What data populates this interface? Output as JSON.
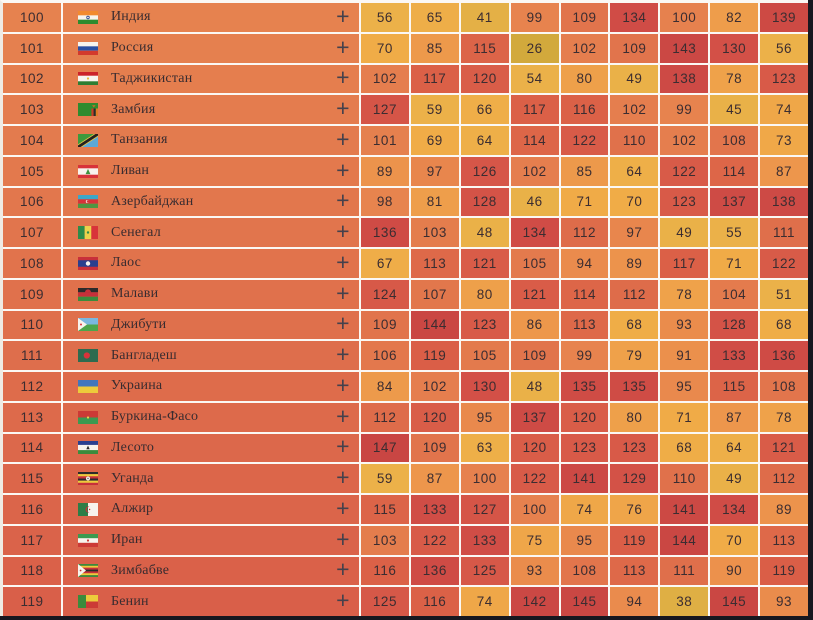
{
  "page": {
    "background": "#17171F",
    "grid_line": "#FBF8F4",
    "left_edge": "#EFEBE4"
  },
  "colors": {
    "number_text": "#3B2D31",
    "country_text": "#392C30",
    "plus_icon": "#45414C",
    "row_bg_top": "#E6824F",
    "row_bg_bottom": "#D95F49"
  },
  "heatmap_stops": [
    [
      26,
      "#D2A93C"
    ],
    [
      36,
      "#DCAE42"
    ],
    [
      44,
      "#E9B148"
    ],
    [
      58,
      "#ECB149"
    ],
    [
      70,
      "#F0AC47"
    ],
    [
      82,
      "#EE9D4B"
    ],
    [
      92,
      "#EB8E4C"
    ],
    [
      100,
      "#E6814E"
    ],
    [
      109,
      "#E1744C"
    ],
    [
      116,
      "#DB6147"
    ],
    [
      124,
      "#D75948"
    ],
    [
      132,
      "#D14D46"
    ],
    [
      140,
      "#CC4944"
    ],
    [
      147,
      "#C94643"
    ]
  ],
  "table": {
    "expand_symbol": "+",
    "rows": [
      {
        "rank": "100",
        "country": "Индия",
        "flag": "india",
        "values": [
          56,
          65,
          41,
          99,
          109,
          134,
          100,
          82,
          139
        ]
      },
      {
        "rank": "101",
        "country": "Россия",
        "flag": "russia",
        "values": [
          70,
          85,
          115,
          26,
          102,
          109,
          143,
          130,
          56
        ]
      },
      {
        "rank": "102",
        "country": "Таджикистан",
        "flag": "tajikistan",
        "values": [
          102,
          117,
          120,
          54,
          80,
          49,
          138,
          78,
          123
        ]
      },
      {
        "rank": "103",
        "country": "Замбия",
        "flag": "zambia",
        "values": [
          127,
          59,
          66,
          117,
          116,
          102,
          99,
          45,
          74
        ]
      },
      {
        "rank": "104",
        "country": "Танзания",
        "flag": "tanzania",
        "values": [
          101,
          69,
          64,
          114,
          122,
          110,
          102,
          108,
          73
        ]
      },
      {
        "rank": "105",
        "country": "Ливан",
        "flag": "lebanon",
        "values": [
          89,
          97,
          126,
          102,
          85,
          64,
          122,
          114,
          87
        ]
      },
      {
        "rank": "106",
        "country": "Азербайджан",
        "flag": "azerbaijan",
        "values": [
          98,
          81,
          128,
          46,
          71,
          70,
          123,
          137,
          138
        ]
      },
      {
        "rank": "107",
        "country": "Сенегал",
        "flag": "senegal",
        "values": [
          136,
          103,
          48,
          134,
          112,
          97,
          49,
          55,
          111
        ]
      },
      {
        "rank": "108",
        "country": "Лаос",
        "flag": "laos",
        "values": [
          67,
          113,
          121,
          105,
          94,
          89,
          117,
          71,
          122
        ]
      },
      {
        "rank": "109",
        "country": "Малави",
        "flag": "malawi",
        "values": [
          124,
          107,
          80,
          121,
          114,
          112,
          78,
          104,
          51
        ]
      },
      {
        "rank": "110",
        "country": "Джибути",
        "flag": "djibouti",
        "values": [
          109,
          144,
          123,
          86,
          113,
          68,
          93,
          128,
          68
        ]
      },
      {
        "rank": "111",
        "country": "Бангладеш",
        "flag": "bangladesh",
        "values": [
          106,
          119,
          105,
          109,
          99,
          79,
          91,
          133,
          136
        ]
      },
      {
        "rank": "112",
        "country": "Украина",
        "flag": "ukraine",
        "values": [
          84,
          102,
          130,
          48,
          135,
          135,
          95,
          115,
          108
        ]
      },
      {
        "rank": "113",
        "country": "Буркина-Фасо",
        "flag": "burkina",
        "values": [
          112,
          120,
          95,
          137,
          120,
          80,
          71,
          87,
          78
        ]
      },
      {
        "rank": "114",
        "country": "Лесото",
        "flag": "lesotho",
        "values": [
          147,
          109,
          63,
          120,
          123,
          123,
          68,
          64,
          121
        ]
      },
      {
        "rank": "115",
        "country": "Уганда",
        "flag": "uganda",
        "values": [
          59,
          87,
          100,
          122,
          141,
          129,
          110,
          49,
          112
        ]
      },
      {
        "rank": "116",
        "country": "Алжир",
        "flag": "algeria",
        "values": [
          115,
          133,
          127,
          100,
          74,
          76,
          141,
          134,
          89
        ]
      },
      {
        "rank": "117",
        "country": "Иран",
        "flag": "iran",
        "values": [
          103,
          122,
          133,
          75,
          95,
          119,
          144,
          70,
          113
        ]
      },
      {
        "rank": "118",
        "country": "Зимбабве",
        "flag": "zimbabwe",
        "values": [
          116,
          136,
          125,
          93,
          108,
          113,
          111,
          90,
          119
        ]
      },
      {
        "rank": "119",
        "country": "Бенин",
        "flag": "benin",
        "values": [
          125,
          116,
          74,
          142,
          145,
          94,
          38,
          145,
          93
        ]
      }
    ]
  }
}
